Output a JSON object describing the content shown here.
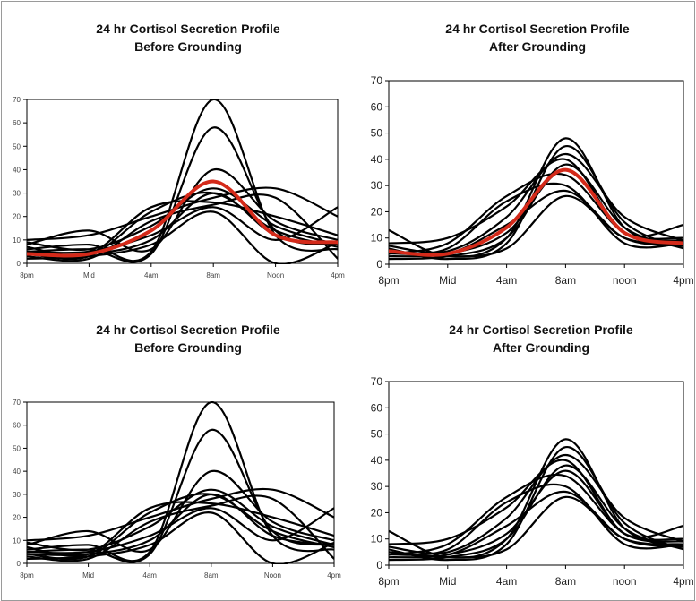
{
  "colors": {
    "black_series": "#000000",
    "mean_series": "#d42a1a",
    "axis": "#000000"
  },
  "chart_data": [
    {
      "type": "line",
      "title_line1": "24 hr Cortisol Secretion Profile",
      "title_line2": "Before Grounding",
      "x_ticks": [
        "8pm",
        "Mid",
        "4am",
        "8am",
        "Noon",
        "4pm"
      ],
      "y_ticks": [
        "0",
        "10",
        "20",
        "30",
        "40",
        "50",
        "60",
        "70"
      ],
      "ylim": [
        0,
        70
      ],
      "x": [
        0,
        4,
        8,
        12,
        16,
        20
      ],
      "grid": false,
      "series": [
        {
          "values": [
            6,
            8,
            5,
            70,
            12,
            6
          ]
        },
        {
          "values": [
            5,
            6,
            4,
            58,
            14,
            8
          ]
        },
        {
          "values": [
            8,
            14,
            6,
            40,
            18,
            10
          ]
        },
        {
          "values": [
            10,
            12,
            20,
            28,
            32,
            20
          ]
        },
        {
          "values": [
            4,
            3,
            22,
            30,
            14,
            7
          ]
        },
        {
          "values": [
            3,
            2,
            18,
            25,
            28,
            2
          ]
        },
        {
          "values": [
            5,
            5,
            12,
            24,
            10,
            24
          ]
        },
        {
          "values": [
            7,
            4,
            24,
            26,
            20,
            12
          ]
        },
        {
          "values": [
            2,
            3,
            8,
            22,
            0,
            9
          ]
        },
        {
          "values": [
            9,
            6,
            16,
            32,
            16,
            8
          ]
        },
        {
          "values": [
            4,
            4,
            10,
            30,
            12,
            8
          ]
        },
        {
          "color": "red",
          "values": [
            4,
            4,
            14,
            35,
            12,
            9
          ]
        }
      ]
    },
    {
      "type": "line",
      "title_line1": "24 hr Cortisol Secretion Profile",
      "title_line2": "After Grounding",
      "x_ticks": [
        "8pm",
        "Mid",
        "4am",
        "8am",
        "noon",
        "4pm"
      ],
      "y_ticks": [
        "0",
        "10",
        "20",
        "30",
        "40",
        "50",
        "60",
        "70"
      ],
      "ylim": [
        0,
        70
      ],
      "x": [
        0,
        4,
        8,
        12,
        16,
        20
      ],
      "grid": false,
      "series": [
        {
          "values": [
            13,
            3,
            10,
            48,
            14,
            7
          ]
        },
        {
          "values": [
            6,
            2,
            8,
            45,
            16,
            6
          ]
        },
        {
          "values": [
            8,
            10,
            22,
            40,
            12,
            15
          ]
        },
        {
          "values": [
            4,
            6,
            24,
            30,
            8,
            8
          ]
        },
        {
          "values": [
            5,
            4,
            15,
            28,
            10,
            7
          ]
        },
        {
          "values": [
            3,
            4,
            12,
            36,
            12,
            9
          ]
        },
        {
          "values": [
            7,
            5,
            18,
            42,
            18,
            9
          ]
        },
        {
          "values": [
            2,
            3,
            10,
            38,
            14,
            6
          ]
        },
        {
          "values": [
            4,
            8,
            26,
            34,
            12,
            10
          ]
        },
        {
          "values": [
            5,
            3,
            6,
            26,
            10,
            8
          ]
        },
        {
          "color": "red",
          "values": [
            5,
            4,
            14,
            36,
            12,
            8
          ]
        }
      ]
    },
    {
      "type": "line",
      "title_line1": "24 hr Cortisol Secretion Profile",
      "title_line2": "Before Grounding",
      "x_ticks": [
        "8pm",
        "Mid",
        "4am",
        "8am",
        "Noon",
        "4pm"
      ],
      "y_ticks": [
        "0",
        "10",
        "20",
        "30",
        "40",
        "50",
        "60",
        "70"
      ],
      "ylim": [
        0,
        70
      ],
      "x": [
        0,
        4,
        8,
        12,
        16,
        20
      ],
      "grid": false,
      "series": [
        {
          "values": [
            6,
            8,
            5,
            70,
            12,
            6
          ]
        },
        {
          "values": [
            5,
            6,
            4,
            58,
            14,
            8
          ]
        },
        {
          "values": [
            8,
            14,
            6,
            40,
            18,
            10
          ]
        },
        {
          "values": [
            10,
            12,
            20,
            28,
            32,
            20
          ]
        },
        {
          "values": [
            4,
            3,
            22,
            30,
            14,
            7
          ]
        },
        {
          "values": [
            3,
            2,
            18,
            25,
            28,
            2
          ]
        },
        {
          "values": [
            5,
            5,
            12,
            24,
            10,
            24
          ]
        },
        {
          "values": [
            7,
            4,
            24,
            26,
            20,
            12
          ]
        },
        {
          "values": [
            2,
            3,
            8,
            22,
            0,
            9
          ]
        },
        {
          "values": [
            9,
            6,
            16,
            32,
            16,
            8
          ]
        },
        {
          "values": [
            4,
            4,
            10,
            30,
            12,
            8
          ]
        }
      ]
    },
    {
      "type": "line",
      "title_line1": "24 hr Cortisol Secretion Profile",
      "title_line2": "After Grounding",
      "x_ticks": [
        "8pm",
        "Mid",
        "4am",
        "8am",
        "noon",
        "4pm"
      ],
      "y_ticks": [
        "0",
        "10",
        "20",
        "30",
        "40",
        "50",
        "60",
        "70"
      ],
      "ylim": [
        0,
        70
      ],
      "x": [
        0,
        4,
        8,
        12,
        16,
        20
      ],
      "grid": false,
      "series": [
        {
          "values": [
            13,
            3,
            10,
            48,
            14,
            7
          ]
        },
        {
          "values": [
            6,
            2,
            8,
            45,
            16,
            6
          ]
        },
        {
          "values": [
            8,
            10,
            22,
            40,
            12,
            15
          ]
        },
        {
          "values": [
            4,
            6,
            24,
            30,
            8,
            8
          ]
        },
        {
          "values": [
            5,
            4,
            15,
            28,
            10,
            7
          ]
        },
        {
          "values": [
            3,
            4,
            12,
            36,
            12,
            9
          ]
        },
        {
          "values": [
            7,
            5,
            18,
            42,
            18,
            9
          ]
        },
        {
          "values": [
            2,
            3,
            10,
            38,
            14,
            6
          ]
        },
        {
          "values": [
            4,
            8,
            26,
            34,
            12,
            10
          ]
        },
        {
          "values": [
            5,
            3,
            6,
            26,
            10,
            8
          ]
        }
      ]
    }
  ]
}
